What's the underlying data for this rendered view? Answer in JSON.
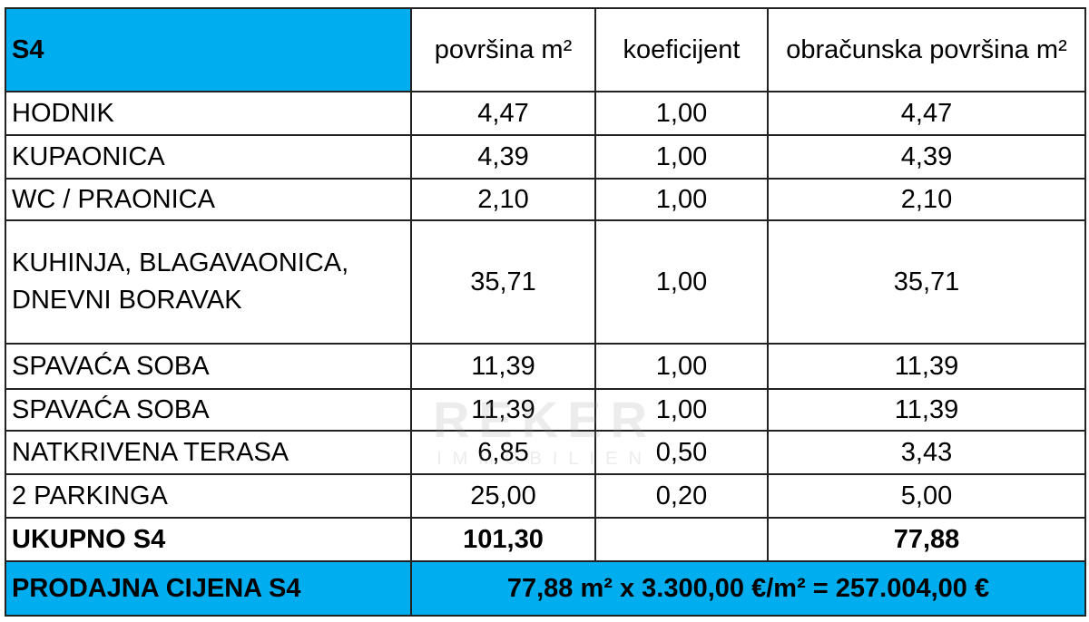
{
  "table": {
    "header": {
      "name": "S4",
      "area": "površina m²",
      "coef": "koeficijent",
      "calc": "obračunska površina m²"
    },
    "rows": [
      {
        "label": "HODNIK",
        "area": "4,47",
        "coef": "1,00",
        "calc": "4,47"
      },
      {
        "label": "KUPAONICA",
        "area": "4,39",
        "coef": "1,00",
        "calc": "4,39"
      },
      {
        "label": "WC / PRAONICA",
        "area": "2,10",
        "coef": "1,00",
        "calc": "2,10"
      },
      {
        "label": "KUHINJA, BLAGAVAONICA, DNEVNI BORAVAK",
        "area": "35,71",
        "coef": "1,00",
        "calc": "35,71"
      },
      {
        "label": "SPAVAĆA SOBA",
        "area": "11,39",
        "coef": "1,00",
        "calc": "11,39"
      },
      {
        "label": "SPAVAĆA SOBA",
        "area": "11,39",
        "coef": "1,00",
        "calc": "11,39"
      },
      {
        "label": "NATKRIVENA TERASA",
        "area": "6,85",
        "coef": "0,50",
        "calc": "3,43"
      },
      {
        "label": "2 PARKINGA",
        "area": "25,00",
        "coef": "0,20",
        "calc": "5,00"
      }
    ],
    "total": {
      "label": "UKUPNO S4",
      "area": "101,30",
      "calc": "77,88"
    },
    "price": {
      "label": "PRODAJNA CIJENA S4",
      "formula": "77,88 m² x 3.300,00 €/m² = 257.004,00 €"
    }
  },
  "watermark": {
    "brand": "REKER",
    "sub": "IMMOBILIEN"
  }
}
